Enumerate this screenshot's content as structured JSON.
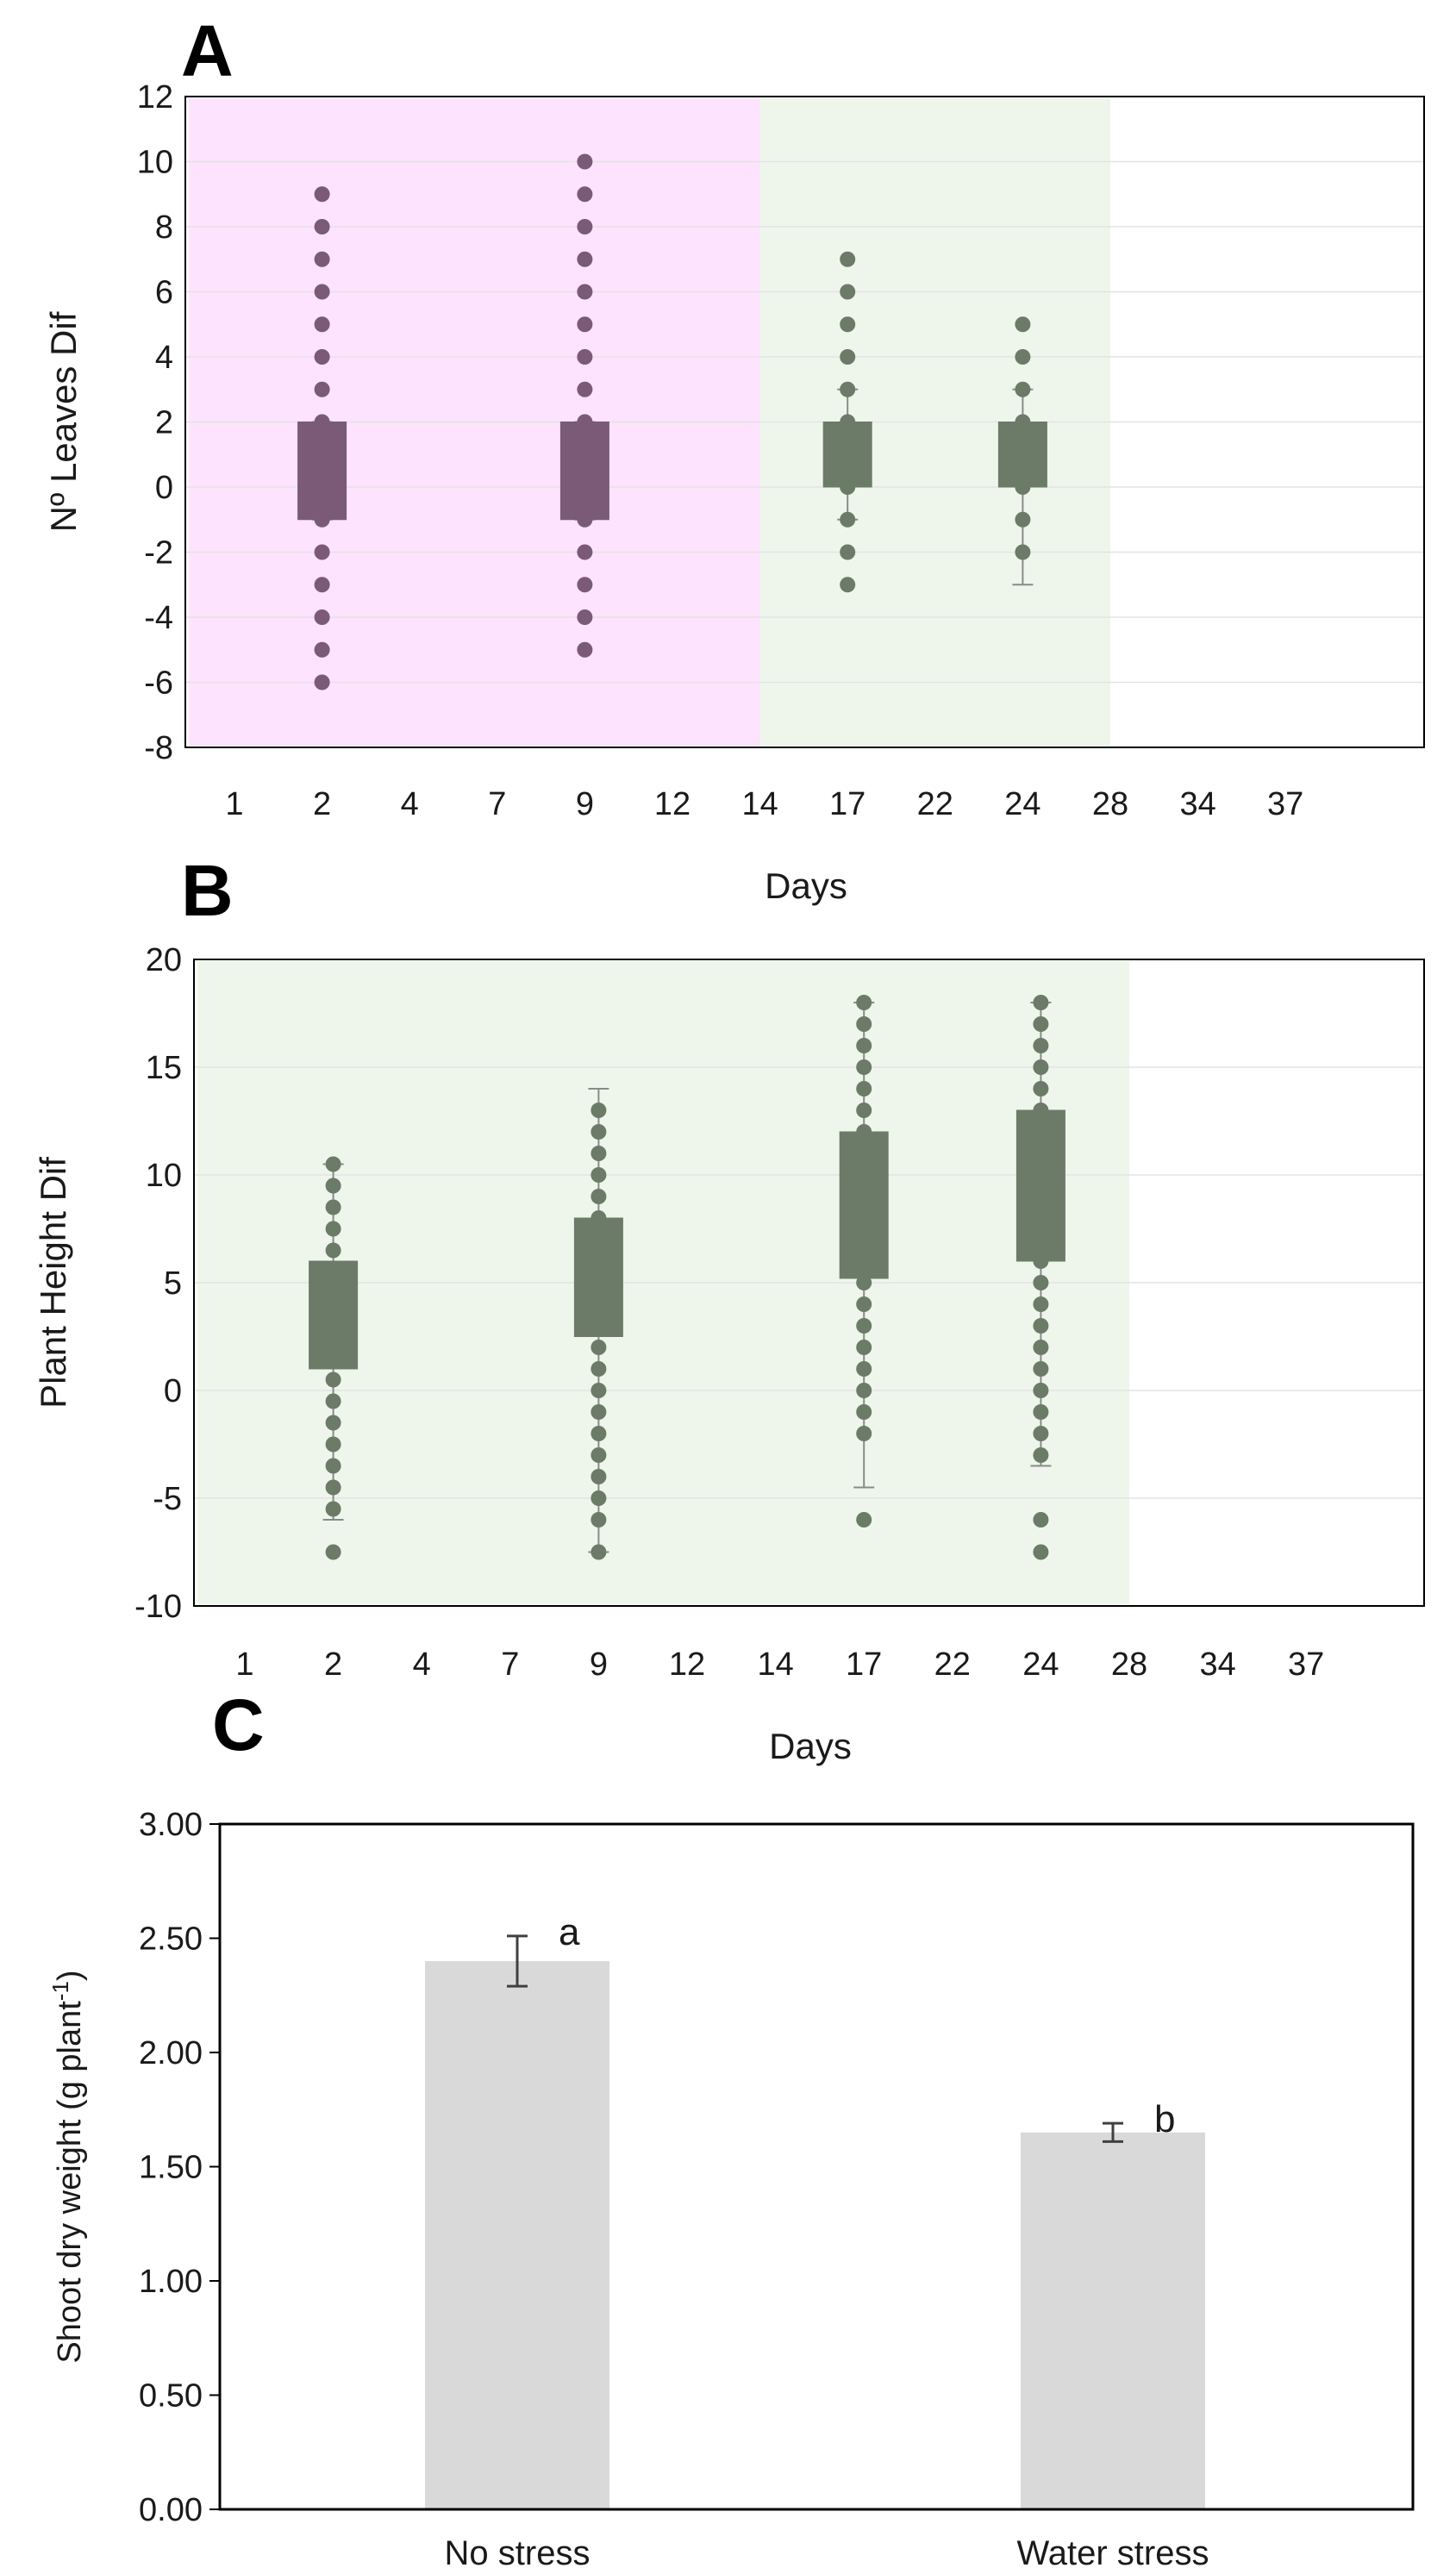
{
  "chart_data": [
    {
      "id": "A",
      "type": "box",
      "panel_label": "A",
      "xlabel": "Days",
      "ylabel": "Nº Leaves Dif",
      "ylim": [
        -8,
        12
      ],
      "yticks": [
        -8,
        -6,
        -4,
        -2,
        0,
        2,
        4,
        6,
        8,
        10,
        12
      ],
      "categories": [
        "1",
        "2",
        "4",
        "7",
        "9",
        "12",
        "14",
        "17",
        "22",
        "24",
        "28",
        "34",
        "37"
      ],
      "shaded_regions": [
        {
          "from_category": "1",
          "to_category": "14",
          "color": "#fde3fd"
        },
        {
          "from_category": "14",
          "to_category": "28",
          "color": "#eef6ec"
        }
      ],
      "boxes": [
        {
          "category": "2",
          "q1": -1,
          "q3": 2,
          "whisker_low": -1,
          "whisker_high": 2,
          "points": [
            -6,
            -5,
            -4,
            -3,
            -2,
            -1,
            0,
            1,
            2,
            3,
            4,
            5,
            6,
            7,
            8,
            9
          ],
          "color": "#7a5a77"
        },
        {
          "category": "9",
          "q1": -1,
          "q3": 2,
          "whisker_low": -1,
          "whisker_high": 2,
          "points": [
            -5,
            -4,
            -3,
            -2,
            -1,
            0,
            1,
            2,
            3,
            4,
            5,
            6,
            7,
            8,
            9,
            10
          ],
          "color": "#7a5a77"
        },
        {
          "category": "17",
          "q1": 0,
          "q3": 2,
          "whisker_low": -1,
          "whisker_high": 3,
          "points": [
            -3,
            -2,
            -1,
            0,
            1,
            2,
            3,
            4,
            5,
            6,
            7
          ],
          "color": "#6c7a68"
        },
        {
          "category": "24",
          "q1": 0,
          "q3": 2,
          "whisker_low": -3,
          "whisker_high": 3,
          "points": [
            -2,
            -1,
            0,
            1,
            2,
            3,
            4,
            5
          ],
          "color": "#6c7a68"
        }
      ]
    },
    {
      "id": "B",
      "type": "box",
      "panel_label": "B",
      "xlabel": "Days",
      "ylabel": "Plant Height  Dif",
      "ylim": [
        -10,
        20
      ],
      "yticks": [
        -10,
        -5,
        0,
        5,
        10,
        15,
        20
      ],
      "categories": [
        "1",
        "2",
        "4",
        "7",
        "9",
        "12",
        "14",
        "17",
        "22",
        "24",
        "28",
        "34",
        "37"
      ],
      "shaded_regions": [
        {
          "from_category": "1",
          "to_category": "28",
          "color": "#eef6ec"
        }
      ],
      "boxes": [
        {
          "category": "2",
          "q1": 1,
          "q3": 6,
          "whisker_low": -6,
          "whisker_high": 10.5,
          "points": [
            -7.5,
            -5.5,
            -4.5,
            -3.5,
            -2.5,
            -1.5,
            -0.5,
            0.5,
            1.5,
            2.5,
            3.5,
            4.5,
            5.5,
            6.5,
            7.5,
            8.5,
            9.5,
            10.5
          ],
          "color": "#6c7a68"
        },
        {
          "category": "9",
          "q1": 2.5,
          "q3": 8,
          "whisker_low": -7.5,
          "whisker_high": 14,
          "points": [
            -7.5,
            -6,
            -5,
            -4,
            -3,
            -2,
            -1,
            0,
            1,
            2,
            3,
            4,
            5,
            6,
            7,
            8,
            9,
            10,
            11,
            12,
            13
          ],
          "color": "#6c7a68"
        },
        {
          "category": "17",
          "q1": 5.2,
          "q3": 12,
          "whisker_low": -4.5,
          "whisker_high": 18,
          "points": [
            -6,
            -2,
            -1,
            0,
            1,
            2,
            3,
            4,
            5,
            6,
            7,
            8,
            9,
            10,
            11,
            12,
            13,
            14,
            15,
            16,
            17,
            18
          ],
          "color": "#6c7a68"
        },
        {
          "category": "24",
          "q1": 6,
          "q3": 13,
          "whisker_low": -3.5,
          "whisker_high": 18,
          "points": [
            -7.5,
            -6,
            -3,
            -2,
            -1,
            0,
            1,
            2,
            3,
            4,
            5,
            6,
            7,
            8,
            9,
            10,
            11,
            12,
            13,
            14,
            15,
            16,
            17,
            18
          ],
          "color": "#6c7a68"
        }
      ]
    },
    {
      "id": "C",
      "type": "bar",
      "panel_label": "C",
      "xlabel": "",
      "ylabel_main": "Shoot dry weight (g plant",
      "ylabel_sup": "-1",
      "ylabel_end": ")",
      "ylim": [
        0,
        3
      ],
      "yticks": [
        "0.00",
        "0.50",
        "1.00",
        "1.50",
        "2.00",
        "2.50",
        "3.00"
      ],
      "categories": [
        "No stress",
        "Water stress"
      ],
      "values": [
        2.4,
        1.65
      ],
      "errors": [
        0.11,
        0.04
      ],
      "significance": [
        "a",
        "b"
      ],
      "bar_color": "#d9d9d9"
    }
  ]
}
